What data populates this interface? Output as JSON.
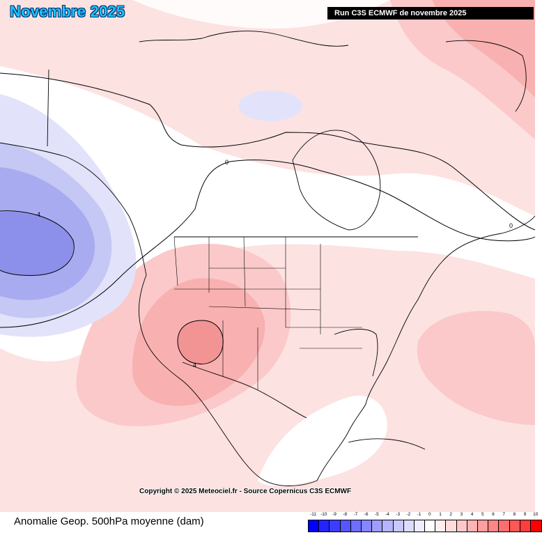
{
  "header": {
    "title": "Novembre 2025",
    "run_label": "Run C3S ECMWF de novembre 2025"
  },
  "footer": {
    "copyright": "Copyright © 2025 Meteociel.fr - Source Copernicus C3S ECMWF",
    "caption": "Anomalie Geop. 500hPa moyenne (dam)"
  },
  "contour_labels": [
    "0",
    "0",
    "-4",
    "4"
  ],
  "legend": {
    "labels": [
      "-11",
      "-10",
      "-9",
      "-8",
      "-7",
      "-6",
      "-5",
      "-4",
      "-3",
      "-2",
      "-1",
      "0",
      "1",
      "2",
      "3",
      "4",
      "5",
      "6",
      "7",
      "8",
      "9",
      "10"
    ],
    "colors": [
      "#0000ff",
      "#2424ff",
      "#3d3dff",
      "#5656ff",
      "#6e6eff",
      "#8686ff",
      "#9e9eff",
      "#b4b4ff",
      "#c8c8ff",
      "#dcdcff",
      "#eeeeff",
      "#ffffff",
      "#ffeeee",
      "#ffdcdc",
      "#ffc8c8",
      "#ffb4b4",
      "#ff9e9e",
      "#ff8686",
      "#ff6e6e",
      "#ff5656",
      "#ff3d3d",
      "#ff0000"
    ]
  },
  "colors": {
    "title": "#19c6ff",
    "weak_positive": "#fde2e2",
    "positive": "#fbc9c9",
    "moderate_positive": "#f8b0b0",
    "strong_positive": "#f39494",
    "weak_negative": "#e2e3fa",
    "negative": "#c5c7f4",
    "moderate_negative": "#a8abef",
    "strong_negative": "#8d90ea"
  }
}
